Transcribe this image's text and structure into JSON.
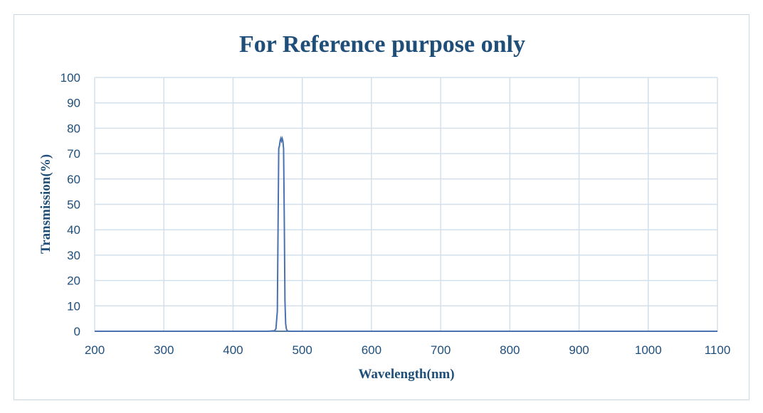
{
  "chart_data": {
    "type": "line",
    "title": "For Reference purpose only",
    "xlabel": "Wavelength(nm)",
    "ylabel": "Transmission(%)",
    "xlim": [
      200,
      1100
    ],
    "ylim": [
      0,
      100
    ],
    "xticks": [
      200,
      300,
      400,
      500,
      600,
      700,
      800,
      900,
      1000,
      1100
    ],
    "yticks": [
      0,
      10,
      20,
      30,
      40,
      50,
      60,
      70,
      80,
      90,
      100
    ],
    "grid": true,
    "series_color": "#4a72b0",
    "series": [
      {
        "x": [
          200,
          450,
          460,
          462,
          464,
          465,
          466,
          467,
          468,
          469,
          470,
          471,
          472,
          473,
          474,
          475,
          476,
          477,
          478,
          480,
          500,
          1100
        ],
        "y": [
          0,
          0,
          0.2,
          1,
          8,
          40,
          72,
          73,
          75,
          76,
          75,
          76,
          75,
          72,
          45,
          12,
          3,
          1,
          0.3,
          0,
          0,
          0
        ]
      }
    ]
  }
}
